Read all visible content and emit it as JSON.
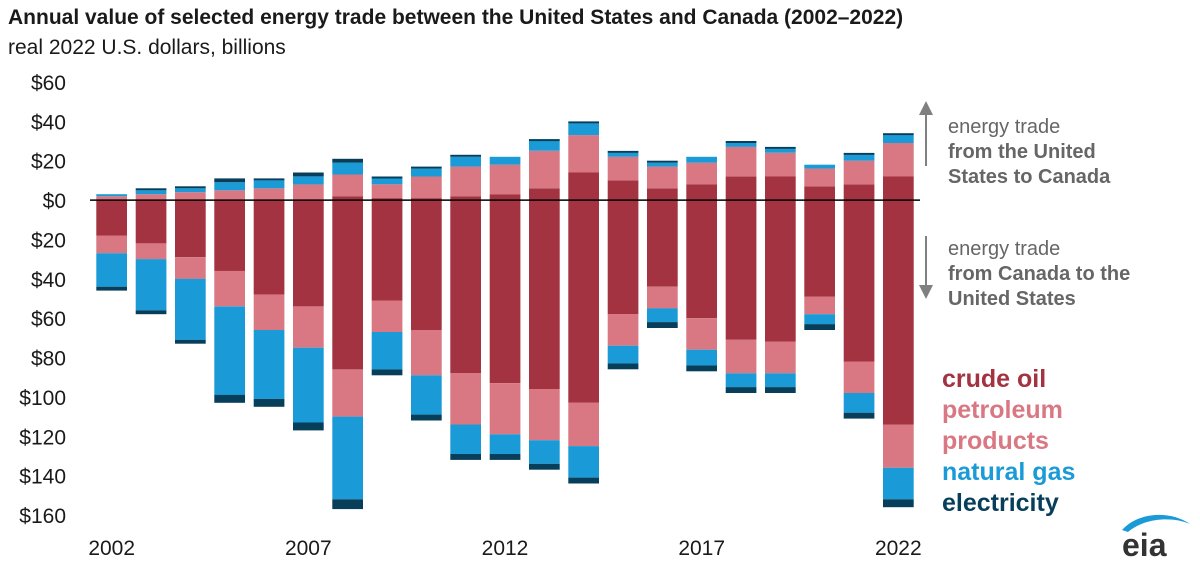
{
  "chart_data": {
    "type": "bar",
    "stacked": true,
    "title": "Annual value of selected energy trade between the United States and Canada (2002–2022)",
    "subtitle": "real 2022 U.S. dollars, billions",
    "ylim": [
      -160,
      60
    ],
    "yticks": [
      60,
      40,
      20,
      0,
      -20,
      -40,
      -60,
      -80,
      -100,
      -120,
      -140,
      -160
    ],
    "ytick_labels": [
      "$60",
      "$40",
      "$20",
      "$0",
      "$20",
      "$40",
      "$60",
      "$80",
      "$100",
      "$120",
      "$140",
      "$160"
    ],
    "categories": [
      "2002",
      "2003",
      "2004",
      "2005",
      "2006",
      "2007",
      "2008",
      "2009",
      "2010",
      "2011",
      "2012",
      "2013",
      "2014",
      "2015",
      "2016",
      "2017",
      "2018",
      "2019",
      "2020",
      "2021",
      "2022"
    ],
    "xtick_labels": [
      "2002",
      "2007",
      "2012",
      "2017",
      "2022"
    ],
    "series_order": [
      "crude oil",
      "petroleum products",
      "natural gas",
      "electricity"
    ],
    "exports_to_canada": {
      "crude oil": [
        0,
        0,
        0,
        0,
        0,
        0,
        2,
        1,
        1,
        2,
        3,
        6,
        14,
        10,
        6,
        8,
        12,
        12,
        7,
        8,
        12
      ],
      "petroleum products": [
        2,
        3,
        4,
        5,
        6,
        8,
        11,
        7,
        11,
        15,
        15,
        19,
        19,
        12,
        11,
        11,
        15,
        12,
        9,
        12,
        17
      ],
      "natural gas": [
        1,
        2,
        2,
        4,
        4,
        4,
        6,
        3,
        4,
        5,
        4,
        5,
        6,
        2,
        2,
        3,
        2,
        2,
        2,
        3,
        4
      ],
      "electricity": [
        0,
        1,
        1,
        2,
        1,
        2,
        2,
        1,
        1,
        1,
        0,
        1,
        1,
        1,
        1,
        0,
        1,
        1,
        0,
        1,
        1
      ]
    },
    "imports_from_canada": {
      "crude oil": [
        18,
        22,
        29,
        36,
        48,
        54,
        86,
        51,
        66,
        88,
        93,
        96,
        103,
        58,
        44,
        60,
        71,
        72,
        49,
        82,
        114
      ],
      "petroleum products": [
        9,
        8,
        11,
        18,
        18,
        21,
        24,
        16,
        23,
        26,
        26,
        26,
        22,
        16,
        11,
        16,
        17,
        16,
        9,
        16,
        22
      ],
      "natural gas": [
        17,
        26,
        31,
        45,
        35,
        38,
        42,
        19,
        20,
        15,
        10,
        12,
        16,
        9,
        7,
        8,
        7,
        7,
        5,
        10,
        16
      ],
      "electricity": [
        2,
        2,
        2,
        4,
        4,
        4,
        5,
        3,
        3,
        3,
        3,
        3,
        3,
        3,
        3,
        3,
        3,
        3,
        3,
        3,
        4
      ]
    },
    "colors": {
      "crude oil": "#a33340",
      "petroleum products": "#d97883",
      "natural gas": "#1a9bd7",
      "electricity": "#073f5b"
    }
  },
  "notes": {
    "up_line1": "energy trade",
    "up_line2": "from the United",
    "up_line3": "States to Canada",
    "down_line1": "energy trade",
    "down_line2": "from Canada to the",
    "down_line3": "United States"
  },
  "legend": {
    "crude_oil": "crude oil",
    "petroleum_line1": "petroleum",
    "petroleum_line2": "products",
    "natural_gas": "natural gas",
    "electricity": "electricity"
  },
  "logo": {
    "text": "eia",
    "color": "#1a9bd7"
  }
}
